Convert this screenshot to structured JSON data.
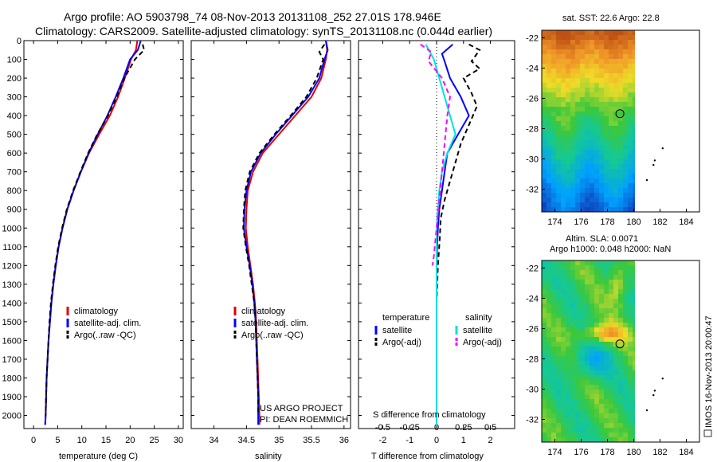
{
  "title": {
    "line1": "Argo profile: AO 5903798_74 08-Nov-2013 20131108_252 27.01S 178.946E",
    "line2": "Climatology: CARS2009. Satellite-adjusted climatology: synTS_20131108.nc (0.044d earlier)"
  },
  "colors": {
    "climatology": "#e00000",
    "satellite": "#0000ff",
    "argo": "#000000",
    "salinity_satellite": "#00e0e0",
    "salinity_argo": "#ff00ff"
  },
  "chart_data": [
    {
      "type": "line",
      "panel": "temperature",
      "xlabel": "temperature (deg C)",
      "xlim": [
        -2,
        31
      ],
      "xticks": [
        0,
        5,
        10,
        15,
        20,
        25,
        30
      ],
      "ylim": [
        2070,
        0
      ],
      "yticks": [
        0,
        100,
        200,
        300,
        400,
        500,
        600,
        700,
        800,
        900,
        1000,
        1100,
        1200,
        1300,
        1400,
        1500,
        1600,
        1700,
        1800,
        1900,
        2000
      ],
      "legend": [
        "climatology",
        "satellite-adj. clim.",
        "Argo(..raw -QC)"
      ],
      "series": [
        {
          "name": "climatology",
          "color": "#e00000",
          "dash": "",
          "points": [
            [
              21.5,
              0
            ],
            [
              21.2,
              50
            ],
            [
              20.2,
              100
            ],
            [
              18.9,
              200
            ],
            [
              17.5,
              300
            ],
            [
              15.8,
              400
            ],
            [
              13.6,
              500
            ],
            [
              11.5,
              600
            ],
            [
              9.8,
              700
            ],
            [
              8.3,
              800
            ],
            [
              7.0,
              900
            ],
            [
              6.0,
              1000
            ],
            [
              5.2,
              1100
            ],
            [
              4.6,
              1200
            ],
            [
              4.1,
              1300
            ],
            [
              3.7,
              1400
            ],
            [
              3.4,
              1500
            ],
            [
              3.1,
              1600
            ],
            [
              2.9,
              1700
            ],
            [
              2.7,
              1800
            ],
            [
              2.6,
              1900
            ],
            [
              2.5,
              2000
            ],
            [
              2.4,
              2050
            ]
          ]
        },
        {
          "name": "satellite-adj. clim.",
          "color": "#0000ff",
          "dash": "",
          "points": [
            [
              22.2,
              0
            ],
            [
              21.6,
              50
            ],
            [
              20.0,
              100
            ],
            [
              18.6,
              200
            ],
            [
              17.0,
              300
            ],
            [
              15.3,
              400
            ],
            [
              13.3,
              500
            ],
            [
              11.4,
              600
            ],
            [
              9.8,
              700
            ],
            [
              8.3,
              800
            ],
            [
              7.0,
              900
            ],
            [
              6.0,
              1000
            ],
            [
              5.2,
              1100
            ],
            [
              4.6,
              1200
            ],
            [
              4.1,
              1300
            ],
            [
              3.7,
              1400
            ],
            [
              3.4,
              1500
            ],
            [
              3.1,
              1600
            ],
            [
              2.9,
              1700
            ],
            [
              2.7,
              1800
            ],
            [
              2.6,
              1900
            ],
            [
              2.5,
              2000
            ],
            [
              2.4,
              2050
            ]
          ]
        },
        {
          "name": "Argo(..raw -QC)",
          "color": "#000000",
          "dash": "6,4",
          "points": [
            [
              22.6,
              20
            ],
            [
              22.9,
              50
            ],
            [
              21.0,
              100
            ],
            [
              18.8,
              200
            ],
            [
              17.2,
              300
            ],
            [
              15.4,
              400
            ],
            [
              13.2,
              500
            ],
            [
              11.3,
              600
            ],
            [
              9.7,
              700
            ],
            [
              8.2,
              800
            ],
            [
              6.9,
              900
            ],
            [
              5.9,
              1000
            ],
            [
              5.1,
              1100
            ],
            [
              4.5,
              1200
            ],
            [
              4.0,
              1300
            ],
            [
              3.6,
              1400
            ],
            [
              3.3,
              1500
            ],
            [
              3.1,
              1600
            ],
            [
              2.9,
              1700
            ],
            [
              2.7,
              1800
            ],
            [
              2.6,
              1900
            ],
            [
              2.5,
              2000
            ]
          ]
        }
      ]
    },
    {
      "type": "line",
      "panel": "salinity",
      "xlabel": "salinity",
      "xlim": [
        33.65,
        36.1
      ],
      "xticks": [
        34,
        34.5,
        35,
        35.5,
        36
      ],
      "ylim": [
        2070,
        0
      ],
      "legend": [
        "climatology",
        "satellite-adj. clim.",
        "Argo(..raw -QC)"
      ],
      "annotation": [
        "US ARGO PROJECT",
        "PI: DEAN ROEMMICH"
      ],
      "series": [
        {
          "name": "climatology",
          "color": "#e00000",
          "dash": "",
          "points": [
            [
              35.72,
              0
            ],
            [
              35.74,
              50
            ],
            [
              35.72,
              100
            ],
            [
              35.65,
              200
            ],
            [
              35.5,
              300
            ],
            [
              35.25,
              400
            ],
            [
              35.0,
              500
            ],
            [
              34.75,
              600
            ],
            [
              34.6,
              700
            ],
            [
              34.52,
              800
            ],
            [
              34.5,
              900
            ],
            [
              34.49,
              1000
            ],
            [
              34.52,
              1100
            ],
            [
              34.56,
              1200
            ],
            [
              34.6,
              1300
            ],
            [
              34.63,
              1400
            ],
            [
              34.65,
              1500
            ],
            [
              34.66,
              1600
            ],
            [
              34.67,
              1700
            ],
            [
              34.68,
              1800
            ],
            [
              34.69,
              1900
            ],
            [
              34.7,
              2000
            ],
            [
              34.7,
              2050
            ]
          ]
        },
        {
          "name": "satellite-adj. clim.",
          "color": "#0000ff",
          "dash": "",
          "points": [
            [
              35.72,
              0
            ],
            [
              35.75,
              50
            ],
            [
              35.7,
              100
            ],
            [
              35.62,
              200
            ],
            [
              35.45,
              300
            ],
            [
              35.2,
              400
            ],
            [
              34.95,
              500
            ],
            [
              34.72,
              600
            ],
            [
              34.57,
              700
            ],
            [
              34.5,
              800
            ],
            [
              34.47,
              900
            ],
            [
              34.46,
              1000
            ],
            [
              34.5,
              1100
            ],
            [
              34.55,
              1200
            ],
            [
              34.59,
              1300
            ],
            [
              34.62,
              1400
            ],
            [
              34.64,
              1500
            ],
            [
              34.65,
              1600
            ],
            [
              34.66,
              1700
            ],
            [
              34.67,
              1800
            ],
            [
              34.68,
              1900
            ],
            [
              34.68,
              2000
            ],
            [
              34.68,
              2050
            ]
          ]
        },
        {
          "name": "Argo(..raw -QC)",
          "color": "#000000",
          "dash": "6,4",
          "points": [
            [
              35.7,
              20
            ],
            [
              35.62,
              60
            ],
            [
              35.68,
              100
            ],
            [
              35.58,
              200
            ],
            [
              35.42,
              300
            ],
            [
              35.18,
              400
            ],
            [
              34.93,
              500
            ],
            [
              34.7,
              600
            ],
            [
              34.55,
              700
            ],
            [
              34.48,
              800
            ],
            [
              34.46,
              900
            ],
            [
              34.45,
              1000
            ],
            [
              34.49,
              1100
            ],
            [
              34.54,
              1200
            ],
            [
              34.58,
              1300
            ],
            [
              34.62,
              1400
            ],
            [
              34.64,
              1500
            ],
            [
              34.65,
              1600
            ],
            [
              34.66,
              1700
            ],
            [
              34.67,
              1800
            ],
            [
              34.68,
              1900
            ],
            [
              34.68,
              2000
            ]
          ]
        }
      ]
    },
    {
      "type": "line",
      "panel": "differences",
      "xlabel": "T difference from climatology",
      "xlabel_top": "S difference from climatology",
      "xlim": [
        -2.9,
        2.9
      ],
      "xticks": [
        -2,
        -1,
        0,
        1,
        2
      ],
      "xticks_s": [
        "-0.5",
        "-0.25",
        "0",
        "0.25",
        "0.5"
      ],
      "ylim": [
        2070,
        0
      ],
      "legend_temperature": {
        "heading": "temperature",
        "items": [
          "satellite",
          "Argo(-adj)"
        ]
      },
      "legend_salinity": {
        "heading": "salinity",
        "items": [
          "satellite",
          "Argo(-adj)"
        ]
      },
      "series": [
        {
          "name": "T satellite",
          "color": "#0000ff",
          "dash": "",
          "points": [
            [
              0.6,
              20
            ],
            [
              0.2,
              70
            ],
            [
              0.3,
              110
            ],
            [
              0.5,
              200
            ],
            [
              0.9,
              300
            ],
            [
              1.2,
              400
            ],
            [
              0.8,
              500
            ],
            [
              0.4,
              600
            ],
            [
              0.3,
              700
            ],
            [
              0.2,
              800
            ],
            [
              0.1,
              900
            ],
            [
              0.05,
              1000
            ],
            [
              0.02,
              1100
            ],
            [
              0.0,
              1200
            ],
            [
              0.0,
              1400
            ],
            [
              0.0,
              2050
            ]
          ]
        },
        {
          "name": "T Argo(-adj)",
          "color": "#000000",
          "dash": "6,4",
          "points": [
            [
              1.2,
              20
            ],
            [
              1.6,
              50
            ],
            [
              1.3,
              110
            ],
            [
              1.6,
              150
            ],
            [
              1.0,
              200
            ],
            [
              1.3,
              280
            ],
            [
              1.5,
              350
            ],
            [
              1.2,
              450
            ],
            [
              0.9,
              550
            ],
            [
              0.7,
              650
            ],
            [
              0.5,
              750
            ],
            [
              0.3,
              850
            ],
            [
              0.15,
              950
            ],
            [
              0.12,
              1050
            ],
            [
              0.05,
              1200
            ],
            [
              0.0,
              1400
            ],
            [
              0.0,
              2000
            ]
          ]
        },
        {
          "name": "S satellite",
          "color": "#00e0e0",
          "dash": "",
          "points": [
            [
              -0.4,
              20
            ],
            [
              -0.1,
              100
            ],
            [
              0.1,
              200
            ],
            [
              0.3,
              300
            ],
            [
              0.5,
              400
            ],
            [
              0.7,
              500
            ],
            [
              0.4,
              600
            ],
            [
              0.2,
              700
            ],
            [
              0.1,
              800
            ],
            [
              0.05,
              900
            ],
            [
              0.0,
              1000
            ],
            [
              0.0,
              2050
            ]
          ]
        },
        {
          "name": "S Argo(-adj)",
          "color": "#ff00ff",
          "dash": "6,4",
          "points": [
            [
              -0.6,
              20
            ],
            [
              -0.2,
              60
            ],
            [
              -0.3,
              110
            ],
            [
              0.2,
              200
            ],
            [
              0.5,
              300
            ],
            [
              0.4,
              400
            ],
            [
              0.3,
              550
            ],
            [
              0.2,
              700
            ],
            [
              0.1,
              850
            ],
            [
              0.0,
              1000
            ],
            [
              -0.1,
              1150
            ],
            [
              -0.15,
              1200
            ]
          ]
        }
      ]
    },
    {
      "type": "heatmap",
      "panel": "sst-map",
      "title": "sat. SST: 22.6  Argo: 22.8",
      "xlim": [
        173,
        185
      ],
      "ylim": [
        -33.5,
        -21.5
      ],
      "xticks": [
        174,
        176,
        178,
        180,
        182,
        184
      ],
      "yticks": [
        -22,
        -24,
        -26,
        -28,
        -30,
        -32
      ],
      "float_position": [
        178.946,
        -27.01
      ]
    },
    {
      "type": "heatmap",
      "panel": "sla-map",
      "title_line1": "Altim. SLA: 0.0071",
      "title_line2": "Argo h1000: 0.048 h2000: NaN",
      "xlim": [
        173,
        185
      ],
      "ylim": [
        -33.5,
        -21.5
      ],
      "xticks": [
        174,
        176,
        178,
        180,
        182,
        184
      ],
      "yticks": [
        -22,
        -24,
        -26,
        -28,
        -30,
        -32
      ],
      "float_position": [
        178.946,
        -27.01
      ]
    }
  ],
  "footer": "IMOS 16-Nov-2013 20:00:47"
}
